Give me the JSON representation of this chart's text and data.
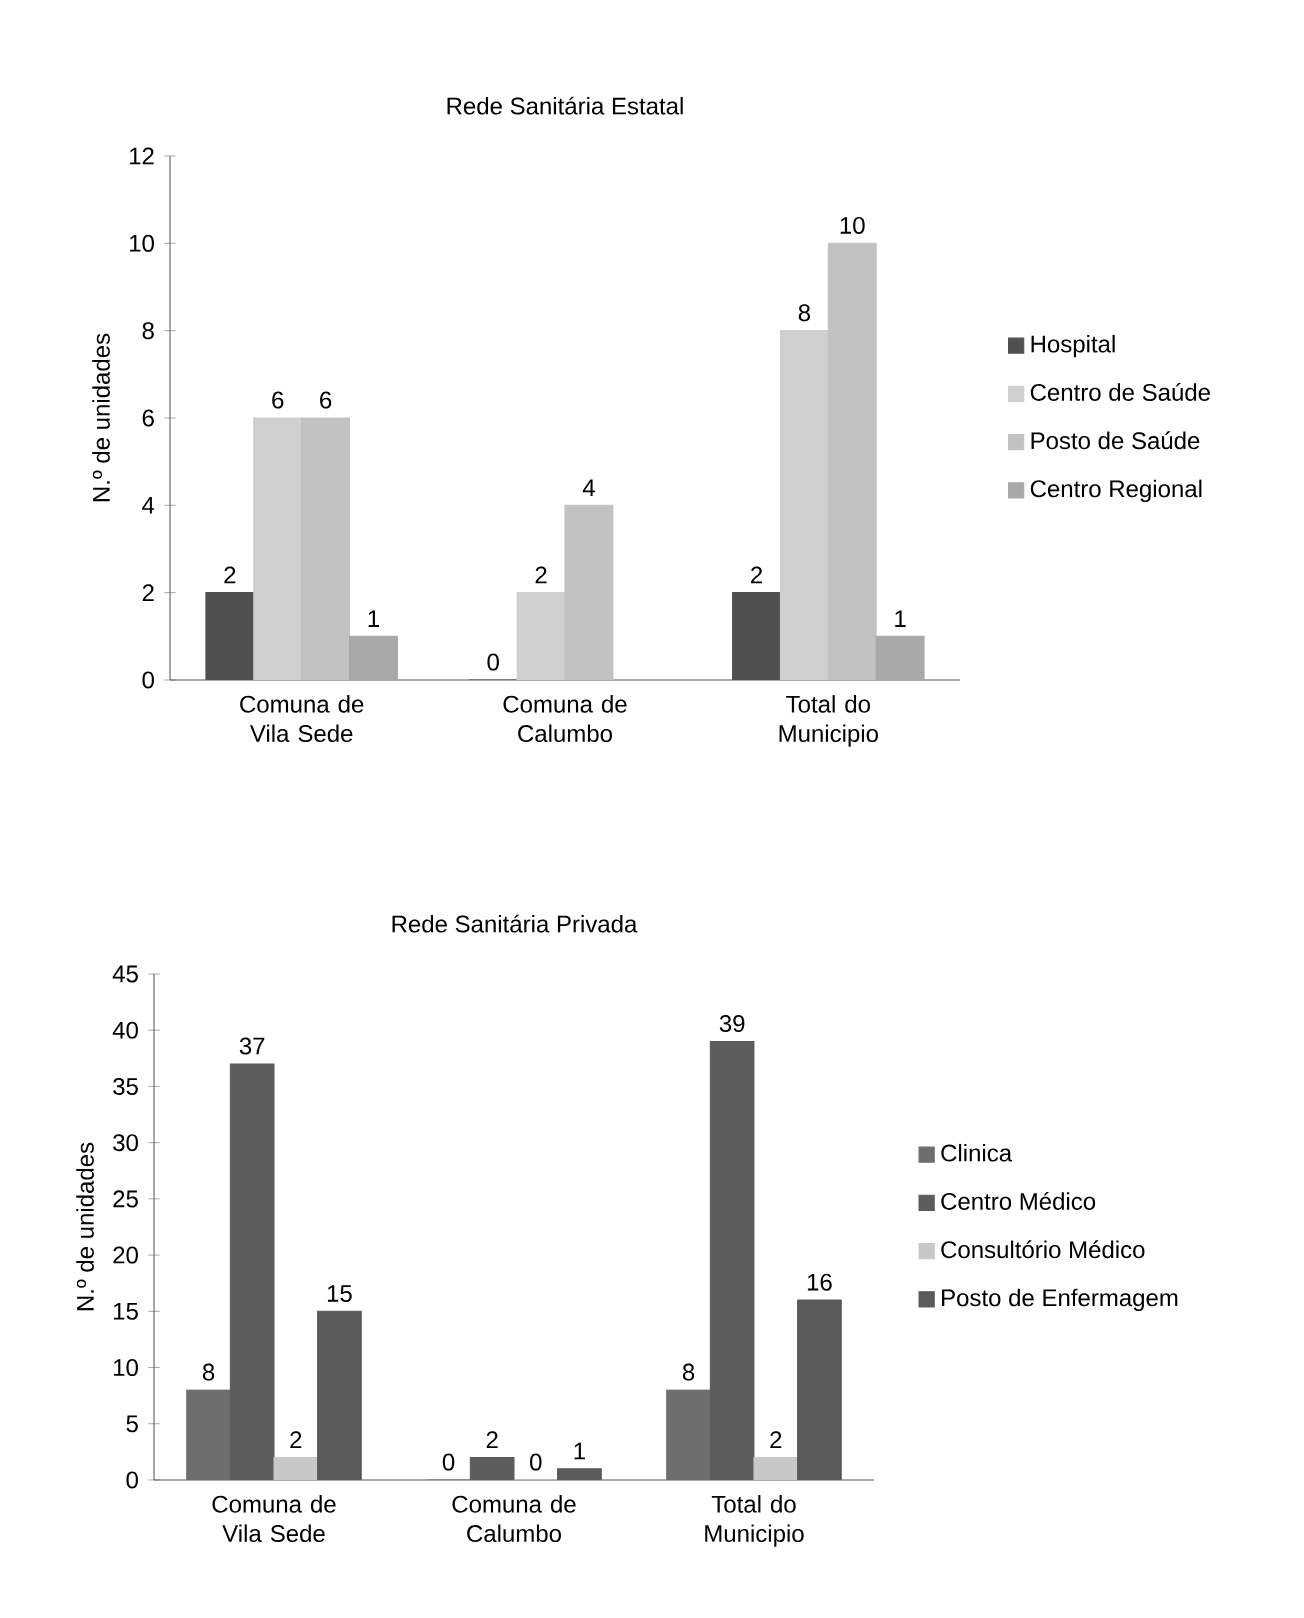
{
  "chart_data": [
    {
      "type": "bar",
      "title": "Rede Sanitária Estatal",
      "ylabel": "N.º de unidades",
      "categories": [
        "Comuna de Vila Sede",
        "Comuna de Calumbo",
        "Total do Municipio"
      ],
      "series": [
        {
          "name": "Hospital",
          "color": "#505050",
          "values": [
            2,
            0,
            2
          ]
        },
        {
          "name": "Centro de Saúde",
          "color": "#cfcfcf",
          "values": [
            6,
            2,
            8
          ]
        },
        {
          "name": "Posto de Saúde",
          "color": "#c2c2c2",
          "values": [
            6,
            4,
            10
          ]
        },
        {
          "name": "Centro Regional",
          "color": "#a9a9a9",
          "values": [
            1,
            null,
            1
          ]
        }
      ],
      "ylim": [
        0,
        12
      ],
      "yticks": [
        0,
        2,
        4,
        6,
        8,
        10,
        12
      ],
      "data_labels": true,
      "legend": "right"
    },
    {
      "type": "bar",
      "title": "Rede Sanitária Privada",
      "ylabel": "N.º de unidades",
      "categories": [
        "Comuna de Vila Sede",
        "Comuna de Calumbo",
        "Total do Municipio"
      ],
      "series": [
        {
          "name": "Clinica",
          "color": "#6e6e6e",
          "values": [
            8,
            0,
            8
          ]
        },
        {
          "name": "Centro Médico",
          "color": "#5c5c5c",
          "values": [
            37,
            2,
            39
          ]
        },
        {
          "name": "Consultório Médico",
          "color": "#c8c8c8",
          "values": [
            2,
            0,
            2
          ]
        },
        {
          "name": "Posto de Enfermagem",
          "color": "#5a5a5a",
          "values": [
            15,
            1,
            16
          ]
        }
      ],
      "ylim": [
        0,
        45
      ],
      "yticks": [
        0,
        5,
        10,
        15,
        20,
        25,
        30,
        35,
        40,
        45
      ],
      "data_labels": true,
      "legend": "right"
    }
  ]
}
